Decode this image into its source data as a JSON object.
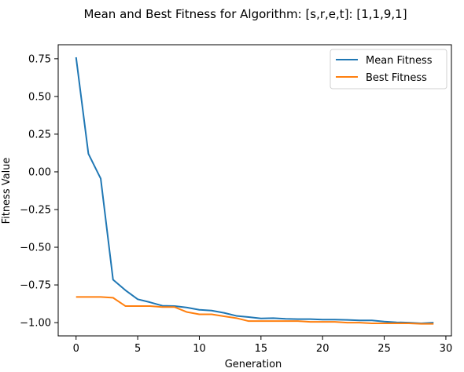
{
  "chart_data": {
    "type": "line",
    "title": "Mean and Best Fitness for Algorithm: [s,r,e,t]: [1,1,9,1]",
    "xlabel": "Generation",
    "ylabel": "Fitness Value",
    "xlim": [
      -1.45,
      30.45
    ],
    "ylim": [
      -1.088,
      0.843
    ],
    "xticks": [
      0,
      5,
      10,
      15,
      20,
      25,
      30
    ],
    "xtick_labels": [
      "0",
      "5",
      "10",
      "15",
      "20",
      "25",
      "30"
    ],
    "yticks": [
      -1.0,
      -0.75,
      -0.5,
      -0.25,
      0.0,
      0.25,
      0.5,
      0.75
    ],
    "ytick_labels": [
      "−1.00",
      "−0.75",
      "−0.50",
      "−0.25",
      "0.00",
      "0.25",
      "0.50",
      "0.75"
    ],
    "grid": false,
    "legend": "top-right",
    "x": [
      0,
      1,
      2,
      3,
      4,
      5,
      6,
      7,
      8,
      9,
      10,
      11,
      12,
      13,
      14,
      15,
      16,
      17,
      18,
      19,
      20,
      21,
      22,
      23,
      24,
      25,
      26,
      27,
      28,
      29
    ],
    "series": [
      {
        "name": "Mean Fitness",
        "color": "#1f77b4",
        "values": [
          0.76,
          0.12,
          -0.045,
          -0.715,
          -0.785,
          -0.845,
          -0.865,
          -0.888,
          -0.89,
          -0.9,
          -0.915,
          -0.92,
          -0.935,
          -0.955,
          -0.963,
          -0.972,
          -0.97,
          -0.975,
          -0.977,
          -0.977,
          -0.98,
          -0.98,
          -0.982,
          -0.985,
          -0.985,
          -0.993,
          -0.998,
          -1.0,
          -1.005,
          -1.0
        ]
      },
      {
        "name": "Best Fitness",
        "color": "#ff7f0e",
        "values": [
          -0.83,
          -0.83,
          -0.83,
          -0.835,
          -0.89,
          -0.89,
          -0.89,
          -0.897,
          -0.897,
          -0.93,
          -0.945,
          -0.945,
          -0.958,
          -0.97,
          -0.99,
          -0.99,
          -0.99,
          -0.99,
          -0.99,
          -0.995,
          -0.995,
          -0.995,
          -1.0,
          -1.0,
          -1.005,
          -1.005,
          -1.005,
          -1.005,
          -1.008,
          -1.008
        ]
      }
    ]
  }
}
